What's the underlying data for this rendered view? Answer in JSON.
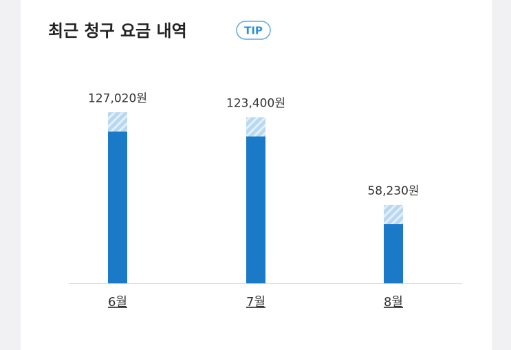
{
  "tip": "TIP",
  "chart_data": {
    "type": "bar",
    "title": "최근 청구 요금 내역",
    "categories": [
      "6월",
      "7월",
      "8월"
    ],
    "values": [
      127020,
      123400,
      58230
    ],
    "value_labels": [
      "127,020원",
      "123,400원",
      "58,230원"
    ],
    "color": "#1b7ac7",
    "ylim": [
      0,
      140000
    ]
  }
}
